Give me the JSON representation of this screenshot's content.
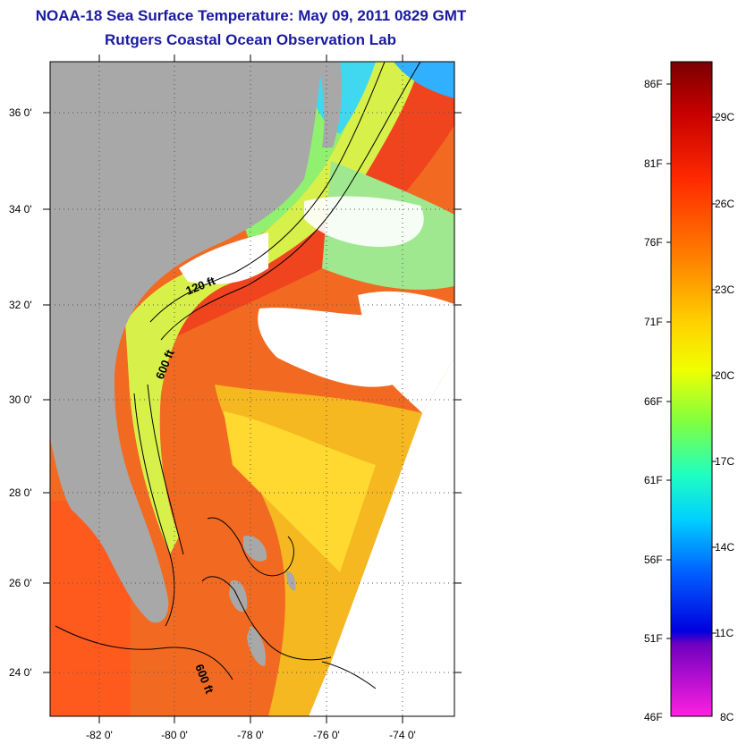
{
  "title": "NOAA-18 Sea Surface Temperature:  May 09, 2011 0829 GMT",
  "subtitle": "Rutgers Coastal Ocean Observation Lab",
  "map": {
    "lat_ticks": [
      "36 0'",
      "34 0'",
      "32 0'",
      "30 0'",
      "28 0'",
      "26 0'",
      "24 0'"
    ],
    "lon_ticks": [
      "-82 0'",
      "-80 0'",
      "-78 0'",
      "-76 0'",
      "-74 0'"
    ],
    "contour_labels": [
      "120 ft",
      "600 ft",
      "600 ft"
    ],
    "colors": {
      "land": "#a8a8a8",
      "cloud": "#ffffff",
      "warm": "#f05020",
      "gulf": "#ff5a1e"
    }
  },
  "colorbar": {
    "fahrenheit": [
      "86F",
      "81F",
      "76F",
      "71F",
      "66F",
      "61F",
      "56F",
      "51F",
      "46F"
    ],
    "celsius": [
      "29C",
      "26C",
      "23C",
      "20C",
      "17C",
      "14C",
      "11C",
      "8C"
    ]
  }
}
